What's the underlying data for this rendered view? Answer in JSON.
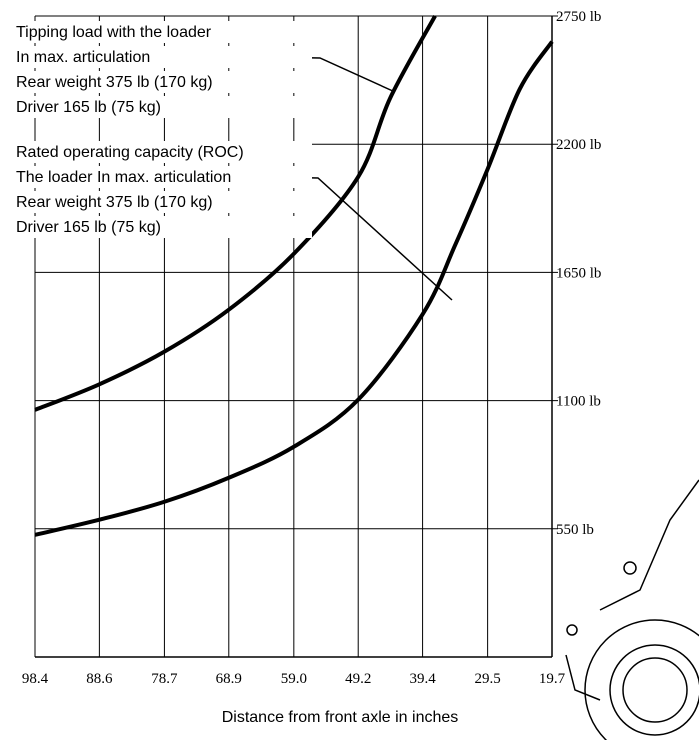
{
  "chart_data": {
    "type": "line",
    "x_label": "Distance from front axle in inches",
    "annotations": [
      {
        "lines": [
          "Tipping load with the loader",
          "In max. articulation",
          "Rear weight 375 lb (170 kg)",
          "Driver 165 lb (75 kg)"
        ]
      },
      {
        "lines": [
          "Rated operating capacity (ROC)",
          "The loader In max. articulation",
          "Rear weight 375 lb (170 kg)",
          "Driver 165 lb (75 kg)"
        ]
      }
    ],
    "series": [
      {
        "color": "#000000",
        "x": [
          98.4,
          88.6,
          78.7,
          68.9,
          59.0,
          49.2,
          44.3,
          37.5
        ],
        "values": [
          1060,
          1170,
          1310,
          1490,
          1730,
          2060,
          2400,
          2750
        ]
      },
      {
        "color": "#000000",
        "x": [
          98.4,
          88.6,
          78.7,
          68.9,
          59.0,
          49.2,
          39.4,
          34.4,
          29.5,
          24.6,
          19.7
        ],
        "values": [
          524,
          589,
          666,
          769,
          902,
          1104,
          1470,
          1770,
          2093,
          2437,
          2640
        ]
      }
    ],
    "xlim": [
      98.4,
      19.7
    ],
    "xticks": [
      98.4,
      88.6,
      78.7,
      68.9,
      {
        "value": 59.0,
        "label": "59.0"
      },
      49.2,
      39.4,
      29.5,
      19.7
    ],
    "ylim": [
      0,
      2750
    ],
    "yticks": [
      {
        "value": 550,
        "label": "550 lb"
      },
      {
        "value": 1100,
        "label": "1100 lb"
      },
      {
        "value": 1650,
        "label": "1650 lb"
      },
      {
        "value": 2200,
        "label": "2200 lb"
      },
      {
        "value": 2750,
        "label": "2750 lb"
      }
    ],
    "grid": true
  }
}
